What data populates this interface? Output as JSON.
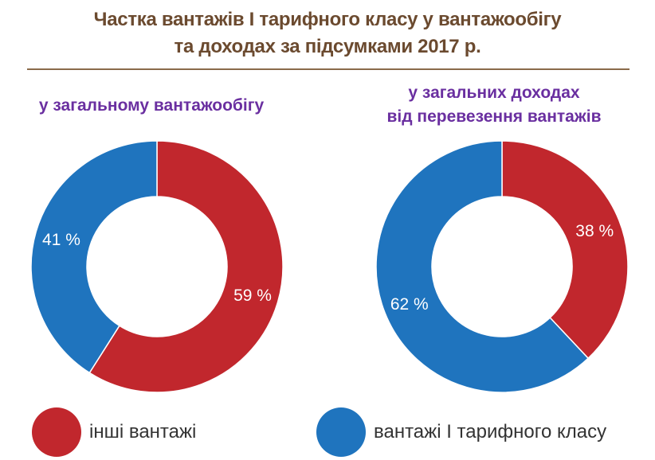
{
  "title_line1": "Частка вантажів І тарифного класу у вантажообігу",
  "title_line2": "та доходах за підсумками 2017 р.",
  "colors": {
    "red": "#c1272d",
    "blue": "#1f74be",
    "title": "#6b4a2f",
    "subtitle": "#6a2fa0"
  },
  "chart_data": [
    {
      "type": "pie",
      "subtitle": "у загальному вантажообігу",
      "slices": [
        {
          "name": "інші вантажі",
          "value": 59,
          "label": "59 %",
          "color": "#c1272d"
        },
        {
          "name": "вантажі І тарифного класу",
          "value": 41,
          "label": "41 %",
          "color": "#1f74be"
        }
      ]
    },
    {
      "type": "pie",
      "subtitle_line1": "у загальних доходах",
      "subtitle_line2": "від перевезення вантажів",
      "slices": [
        {
          "name": "інші вантажі",
          "value": 38,
          "label": "38 %",
          "color": "#c1272d"
        },
        {
          "name": "вантажі І тарифного класу",
          "value": 62,
          "label": "62 %",
          "color": "#1f74be"
        }
      ]
    }
  ],
  "legend": [
    {
      "label": "інші вантажі",
      "color": "#c1272d"
    },
    {
      "label": "вантажі І тарифного класу",
      "color": "#1f74be"
    }
  ]
}
